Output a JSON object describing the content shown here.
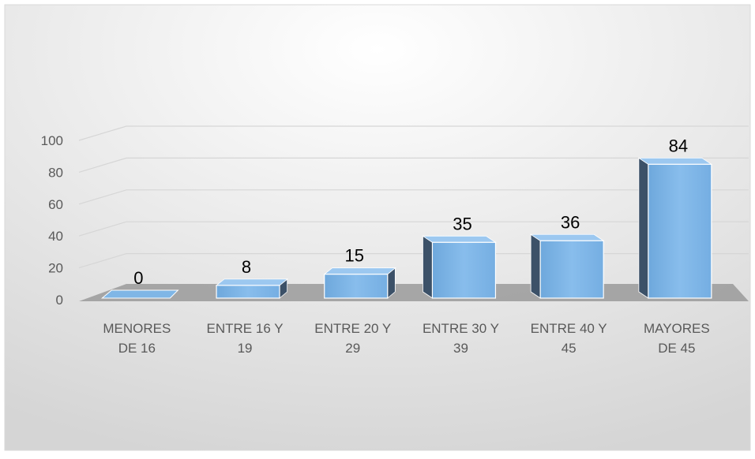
{
  "chart_data": {
    "type": "bar",
    "title": "",
    "xlabel": "",
    "ylabel": "",
    "categories": [
      [
        "MENORES",
        "DE 16"
      ],
      [
        "ENTRE 16 Y",
        "19"
      ],
      [
        "ENTRE 20 Y",
        "29"
      ],
      [
        "ENTRE 30 Y",
        "39"
      ],
      [
        "ENTRE 40 Y",
        "45"
      ],
      [
        "MAYORES",
        "DE 45"
      ]
    ],
    "values": [
      0,
      8,
      15,
      35,
      36,
      84
    ],
    "data_labels": [
      "0",
      "8",
      "15",
      "35",
      "36",
      "84"
    ],
    "ylim": [
      0,
      100
    ],
    "y_ticks": [
      0,
      20,
      40,
      60,
      80,
      100
    ],
    "y_tick_labels": [
      "0",
      "20",
      "40",
      "60",
      "80",
      "100"
    ],
    "grid": true,
    "legend": "none",
    "style": "3d-perspective",
    "colors": {
      "bar_front": "#7fb6e6",
      "bar_side": "#3c5168",
      "bar_edge": "#ffffff",
      "floor": "#9a9a9a",
      "gridline": "#d6d6d6",
      "background_light": "#ffffff",
      "background_dark": "#d5d5d5"
    }
  }
}
